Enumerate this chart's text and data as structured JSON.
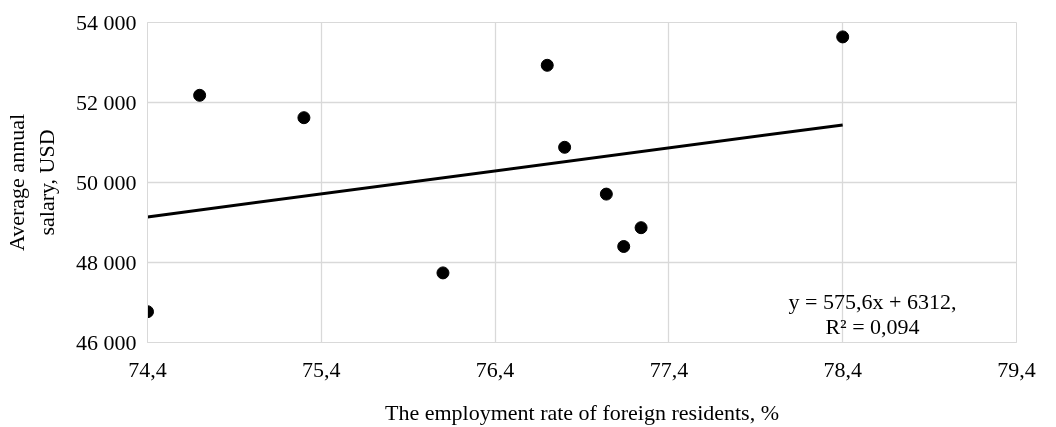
{
  "chart_data": {
    "type": "scatter",
    "xlabel": "The employment rate of foreign residents, %",
    "ylabel": "Average annual\nsalary, USD",
    "series": [
      {
        "color": "#000000",
        "marker": "circle",
        "x": [
          74.4,
          74.7,
          75.3,
          76.1,
          76.7,
          76.8,
          77.04,
          77.14,
          77.24,
          78.4
        ],
        "values": [
          46770,
          52180,
          51620,
          47740,
          52930,
          50880,
          49710,
          48400,
          48870,
          53640
        ]
      },
      {
        "type": "line",
        "color": "#000000",
        "line_style": "solid",
        "x": [
          74.4,
          78.4
        ],
        "values": [
          49140,
          51440
        ]
      }
    ],
    "annotations": [
      "y = 575,6x + 6312,\nR² = 0,094"
    ],
    "xlim": [
      74.4,
      79.4
    ],
    "ylim": [
      46000,
      54000
    ],
    "xticks": [
      {
        "value": 74.4,
        "label": "74,4"
      },
      {
        "value": 75.4,
        "label": "75,4"
      },
      {
        "value": 76.4,
        "label": "76,4"
      },
      {
        "value": 77.4,
        "label": "77,4"
      },
      {
        "value": 78.4,
        "label": "78,4"
      },
      {
        "value": 79.4,
        "label": "79,4"
      }
    ],
    "yticks": [
      {
        "value": 46000,
        "label": "46 000"
      },
      {
        "value": 48000,
        "label": "48 000"
      },
      {
        "value": 50000,
        "label": "50 000"
      },
      {
        "value": 52000,
        "label": "52 000"
      },
      {
        "value": 54000,
        "label": "54 000"
      }
    ],
    "grid": true
  }
}
